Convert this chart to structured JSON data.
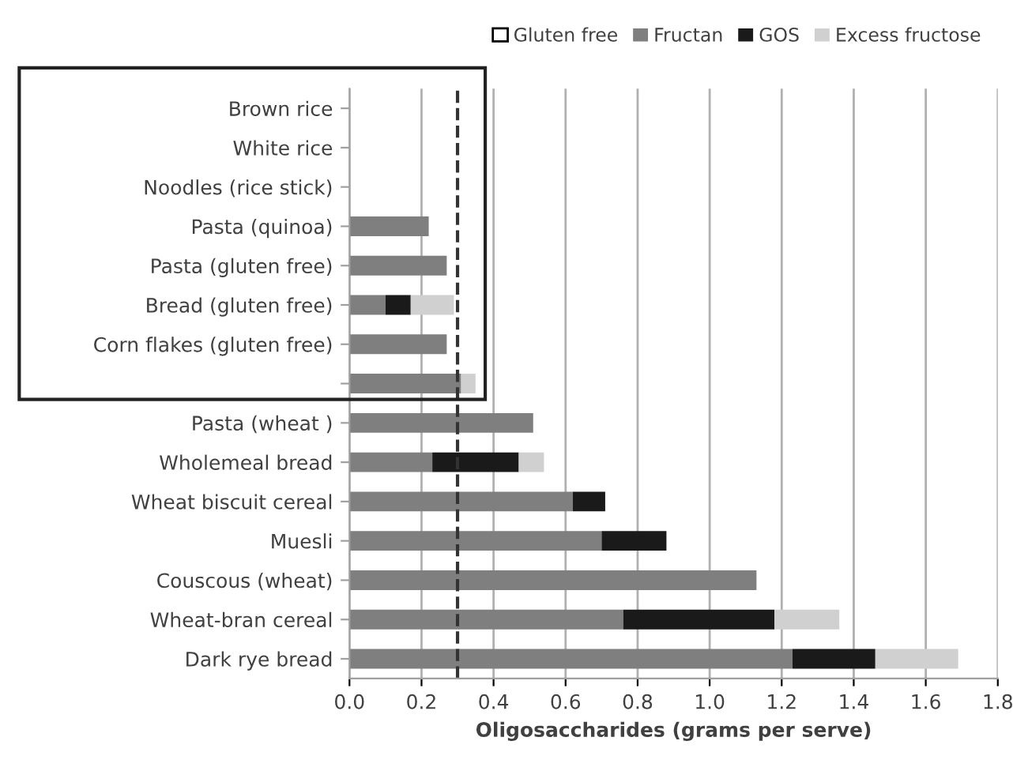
{
  "chart_data": {
    "type": "bar",
    "orientation": "horizontal",
    "stacked": true,
    "xlabel": "Oligosaccharides (grams per serve)",
    "categories": [
      "Brown rice",
      "White rice",
      "Noodles (rice stick)",
      "Pasta (quinoa)",
      "Pasta (gluten free)",
      "Bread (gluten free)",
      "Corn flakes (gluten free)",
      null,
      "Pasta (wheat )",
      "Wholemeal bread",
      "Wheat biscuit cereal",
      "Muesli",
      "Couscous (wheat)",
      "Wheat-bran cereal",
      "Dark rye bread"
    ],
    "series": [
      {
        "name": "Fructan",
        "color": "#7f7f7f",
        "values": [
          0,
          0,
          0,
          0.22,
          0.27,
          0.1,
          0.27,
          0.31,
          0.51,
          0.23,
          0.62,
          0.7,
          1.13,
          0.76,
          1.23
        ]
      },
      {
        "name": "GOS",
        "color": "#1a1a1a",
        "values": [
          0,
          0,
          0,
          0,
          0,
          0.07,
          0,
          0,
          0,
          0.24,
          0.09,
          0.18,
          0,
          0.42,
          0.23
        ]
      },
      {
        "name": "Excess fructose",
        "color": "#d0d0d0",
        "values": [
          0,
          0,
          0,
          0,
          0,
          0.12,
          0,
          0.04,
          0,
          0.07,
          0,
          0,
          0,
          0.18,
          0.23
        ]
      }
    ],
    "xlim": [
      0,
      1.8
    ],
    "xticks": [
      {
        "value": 0,
        "label": "0.0"
      },
      0.2,
      0.4,
      0.6,
      0.8,
      {
        "value": 1,
        "label": "1.0"
      },
      1.2,
      1.4,
      1.6,
      1.8
    ],
    "ref_lines": [
      {
        "axis": "x",
        "value": 0.3,
        "color": "#333333",
        "line_style": "dashed"
      }
    ],
    "annotations": [
      "Gluten free"
    ],
    "grid": "x",
    "legend": "top"
  }
}
